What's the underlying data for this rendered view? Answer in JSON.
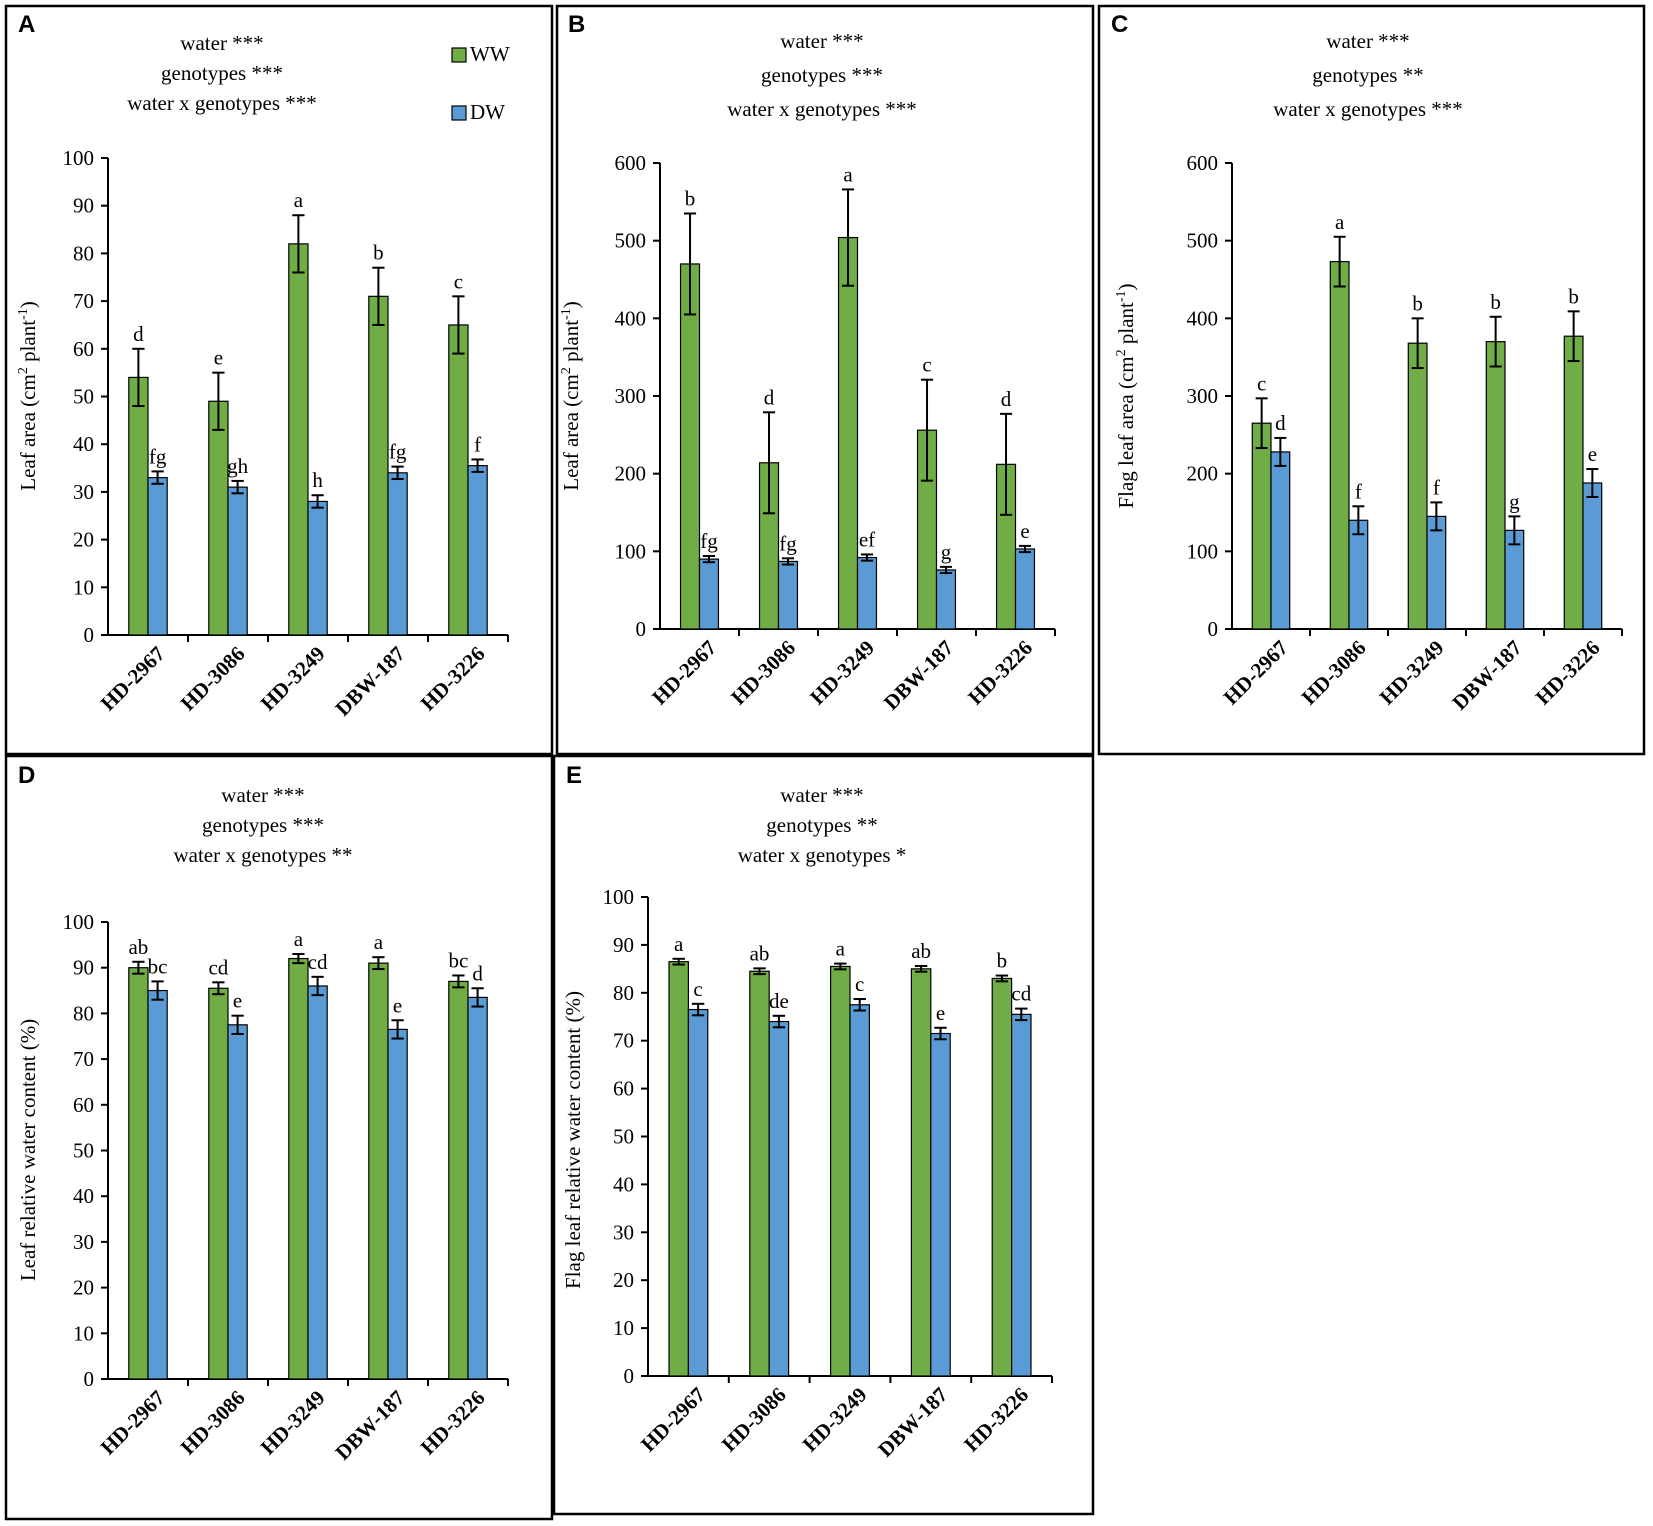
{
  "legend": {
    "ww": "WW",
    "dw": "DW"
  },
  "colors": {
    "ww": "#70ad47",
    "dw": "#5b9bd5",
    "frame": "#000000",
    "err": "#000000"
  },
  "chart_data": [
    {
      "panel": "A",
      "type": "bar",
      "stats": [
        "water ***",
        "genotypes ***",
        "water x genotypes ***"
      ],
      "ylabel": "Leaf area (cm2 plant-1)",
      "ylabel_main": "Leaf area (cm",
      "ylabel_sup1": "2",
      "ylabel_mid": " plant",
      "ylabel_sup2": "-1",
      "ylabel_end": ")",
      "categories": [
        "HD-2967",
        "HD-3086",
        "HD-3249",
        "DBW-187",
        "HD-3226"
      ],
      "ylim": [
        0,
        100
      ],
      "ticks": [
        0,
        10,
        20,
        30,
        40,
        50,
        60,
        70,
        80,
        90,
        100
      ],
      "series": [
        {
          "name": "WW",
          "values": [
            54,
            49,
            82,
            71,
            65
          ],
          "err": [
            6,
            6,
            6,
            6,
            6
          ],
          "letters": [
            "d",
            "e",
            "a",
            "b",
            "c"
          ]
        },
        {
          "name": "DW",
          "values": [
            33,
            31,
            28,
            34,
            35.5
          ],
          "err": [
            1.3,
            1.3,
            1.3,
            1.3,
            1.3
          ],
          "letters": [
            "fg",
            "gh",
            "h",
            "fg",
            "f"
          ]
        }
      ]
    },
    {
      "panel": "B",
      "type": "bar",
      "stats": [
        "water ***",
        "genotypes ***",
        "water x genotypes ***"
      ],
      "ylabel": "Leaf area (cm2 plant-1)",
      "ylabel_main": "Leaf area (cm",
      "ylabel_sup1": "2",
      "ylabel_mid": " plant",
      "ylabel_sup2": "-1",
      "ylabel_end": ")",
      "categories": [
        "HD-2967",
        "HD-3086",
        "HD-3249",
        "DBW-187",
        "HD-3226"
      ],
      "ylim": [
        0,
        600
      ],
      "ticks": [
        0,
        100,
        200,
        300,
        400,
        500,
        600
      ],
      "series": [
        {
          "name": "WW",
          "values": [
            470,
            214,
            504,
            256,
            212
          ],
          "err": [
            65,
            65,
            62,
            65,
            65
          ],
          "letters": [
            "b",
            "d",
            "a",
            "c",
            "d"
          ]
        },
        {
          "name": "DW",
          "values": [
            90,
            87,
            92,
            76,
            103
          ],
          "err": [
            4,
            4,
            4,
            4,
            4
          ],
          "letters": [
            "fg",
            "fg",
            "ef",
            "g",
            "e"
          ]
        }
      ]
    },
    {
      "panel": "C",
      "type": "bar",
      "stats": [
        "water ***",
        "genotypes **",
        "water x genotypes ***"
      ],
      "ylabel": "Flag leaf area (cm2 plant-1)",
      "ylabel_main": "Flag leaf area (cm",
      "ylabel_sup1": "2",
      "ylabel_mid": " plant",
      "ylabel_sup2": "-1",
      "ylabel_end": ")",
      "categories": [
        "HD-2967",
        "HD-3086",
        "HD-3249",
        "DBW-187",
        "HD-3226"
      ],
      "ylim": [
        0,
        600
      ],
      "ticks": [
        0,
        100,
        200,
        300,
        400,
        500,
        600
      ],
      "series": [
        {
          "name": "WW",
          "values": [
            265,
            473,
            368,
            370,
            377
          ],
          "err": [
            32,
            32,
            32,
            32,
            32
          ],
          "letters": [
            "c",
            "a",
            "b",
            "b",
            "b"
          ]
        },
        {
          "name": "DW",
          "values": [
            228,
            140,
            145,
            127,
            188
          ],
          "err": [
            18,
            18,
            18,
            18,
            18
          ],
          "letters": [
            "d",
            "f",
            "f",
            "g",
            "e"
          ]
        }
      ]
    },
    {
      "panel": "D",
      "type": "bar",
      "stats": [
        "water ***",
        "genotypes ***",
        "water x genotypes **"
      ],
      "ylabel": "Leaf relative water content (%)",
      "categories": [
        "HD-2967",
        "HD-3086",
        "HD-3249",
        "DBW-187",
        "HD-3226"
      ],
      "ylim": [
        0,
        100
      ],
      "ticks": [
        0,
        10,
        20,
        30,
        40,
        50,
        60,
        70,
        80,
        90,
        100
      ],
      "series": [
        {
          "name": "WW",
          "values": [
            90,
            85.5,
            92,
            91,
            87
          ],
          "err": [
            1.3,
            1.3,
            1.0,
            1.3,
            1.3
          ],
          "letters": [
            "ab",
            "cd",
            "a",
            "a",
            "bc"
          ]
        },
        {
          "name": "DW",
          "values": [
            85,
            77.5,
            86,
            76.5,
            83.5
          ],
          "err": [
            2,
            2,
            2,
            2,
            2
          ],
          "letters": [
            "bc",
            "e",
            "cd",
            "e",
            "d"
          ]
        }
      ]
    },
    {
      "panel": "E",
      "type": "bar",
      "stats": [
        "water ***",
        "genotypes **",
        "water x genotypes *"
      ],
      "ylabel": "Flag leaf relative water content (%)",
      "categories": [
        "HD-2967",
        "HD-3086",
        "HD-3249",
        "DBW-187",
        "HD-3226"
      ],
      "ylim": [
        0,
        100
      ],
      "ticks": [
        0,
        10,
        20,
        30,
        40,
        50,
        60,
        70,
        80,
        90,
        100
      ],
      "series": [
        {
          "name": "WW",
          "values": [
            86.5,
            84.5,
            85.5,
            85,
            83
          ],
          "err": [
            0.6,
            0.6,
            0.6,
            0.6,
            0.6
          ],
          "letters": [
            "a",
            "ab",
            "a",
            "ab",
            "b"
          ]
        },
        {
          "name": "DW",
          "values": [
            76.5,
            74,
            77.5,
            71.5,
            75.5
          ],
          "err": [
            1.2,
            1.2,
            1.2,
            1.2,
            1.2
          ],
          "letters": [
            "c",
            "de",
            "c",
            "e",
            "cd"
          ]
        }
      ]
    }
  ]
}
